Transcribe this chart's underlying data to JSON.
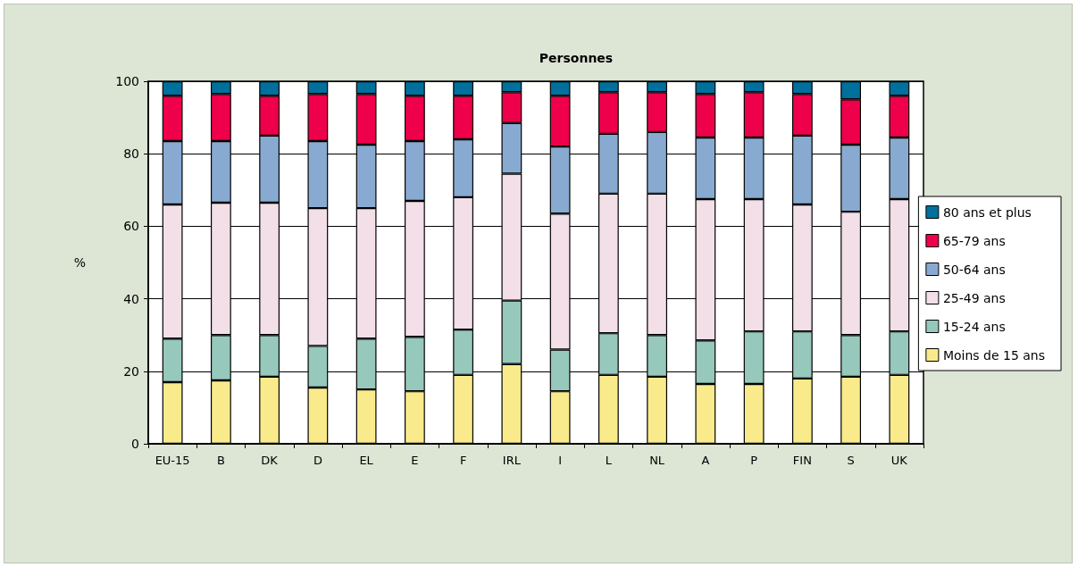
{
  "chart_data": {
    "type": "bar",
    "title": "Personnes",
    "ylabel": "%",
    "stacked": true,
    "grid": "y",
    "legend": "right",
    "categories": [
      "EU-15",
      "B",
      "DK",
      "D",
      "EL",
      "E",
      "F",
      "IRL",
      "I",
      "L",
      "NL",
      "A",
      "P",
      "FIN",
      "S",
      "UK"
    ],
    "ylim": [
      0,
      100
    ],
    "yticks": [
      0,
      20,
      40,
      60,
      80,
      100
    ],
    "series": [
      {
        "name": "Moins de 15 ans",
        "color": "#f9eb8c",
        "values": [
          17,
          17.5,
          18.5,
          15.5,
          15,
          14.5,
          19,
          22,
          14.5,
          19,
          18.5,
          16.5,
          16.5,
          18,
          18.5,
          19
        ]
      },
      {
        "name": "15-24 ans",
        "color": "#96c8bb",
        "values": [
          12,
          12.5,
          11.5,
          11.5,
          14,
          15,
          12.5,
          17.5,
          11.5,
          11.5,
          11.5,
          12,
          14.5,
          13,
          11.5,
          12
        ]
      },
      {
        "name": "25-49 ans",
        "color": "#f2dfe8",
        "values": [
          37,
          36.5,
          36.5,
          38,
          36,
          37.5,
          36.5,
          35,
          37.5,
          38.5,
          39,
          39,
          36.5,
          35,
          34,
          36.5
        ]
      },
      {
        "name": "50-64 ans",
        "color": "#88aad1",
        "values": [
          17.5,
          17,
          18.5,
          18.5,
          17.5,
          16.5,
          16,
          14,
          18.5,
          16.5,
          17,
          17,
          17,
          19,
          18.5,
          17
        ]
      },
      {
        "name": "65-79 ans",
        "color": "#ee004a",
        "values": [
          12.5,
          13,
          11,
          13,
          14,
          12.5,
          12,
          8.5,
          14,
          11.5,
          11,
          12,
          12.5,
          11.5,
          12.5,
          11.5
        ]
      },
      {
        "name": "80 ans et plus",
        "color": "#00709c",
        "values": [
          4,
          3.5,
          4,
          3.5,
          3.5,
          4,
          4,
          3,
          4,
          3,
          3,
          3.5,
          3,
          3.5,
          5,
          4
        ]
      }
    ]
  }
}
